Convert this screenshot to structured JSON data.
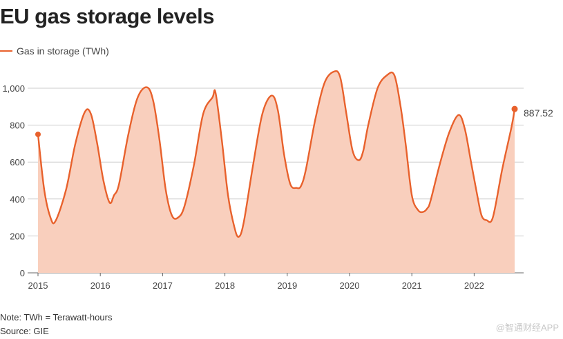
{
  "title": "EU gas storage levels",
  "chart_data": {
    "type": "area",
    "title": "EU gas storage levels",
    "xlabel": "",
    "ylabel": "",
    "ylim": [
      0,
      1100
    ],
    "y_ticks": [
      0,
      200,
      400,
      600,
      800,
      1000
    ],
    "y_tick_labels": [
      "0",
      "200",
      "400",
      "600",
      "800",
      "1,000"
    ],
    "x_ticks": [
      2015,
      2016,
      2017,
      2018,
      2019,
      2020,
      2021,
      2022
    ],
    "x_tick_labels": [
      "2015",
      "2016",
      "2017",
      "2018",
      "2019",
      "2020",
      "2021",
      "2022"
    ],
    "grid": "horizontal",
    "legend": "top-left",
    "series": [
      {
        "name": "Gas in storage (TWh)",
        "color": "#e8612c",
        "fill_color": "#f9cfbd",
        "x": [
          2015.0,
          2015.1,
          2015.2,
          2015.28,
          2015.45,
          2015.6,
          2015.75,
          2015.85,
          2015.95,
          2016.05,
          2016.15,
          2016.22,
          2016.3,
          2016.45,
          2016.6,
          2016.75,
          2016.85,
          2016.95,
          2017.05,
          2017.15,
          2017.25,
          2017.35,
          2017.5,
          2017.65,
          2017.8,
          2017.85,
          2017.95,
          2018.05,
          2018.15,
          2018.22,
          2018.3,
          2018.45,
          2018.6,
          2018.75,
          2018.85,
          2018.95,
          2019.05,
          2019.15,
          2019.22,
          2019.3,
          2019.45,
          2019.6,
          2019.75,
          2019.85,
          2019.95,
          2020.05,
          2020.15,
          2020.22,
          2020.3,
          2020.45,
          2020.6,
          2020.72,
          2020.82,
          2020.9,
          2021.0,
          2021.1,
          2021.18,
          2021.25,
          2021.3,
          2021.45,
          2021.6,
          2021.75,
          2021.85,
          2021.95,
          2022.05,
          2022.12,
          2022.2,
          2022.3,
          2022.45,
          2022.6,
          2022.65
        ],
        "values": [
          750,
          450,
          300,
          280,
          450,
          700,
          870,
          860,
          700,
          500,
          380,
          420,
          480,
          750,
          950,
          1005,
          930,
          720,
          450,
          310,
          300,
          360,
          580,
          860,
          950,
          975,
          720,
          420,
          250,
          195,
          270,
          580,
          860,
          960,
          880,
          640,
          480,
          460,
          470,
          560,
          830,
          1030,
          1090,
          1060,
          860,
          660,
          610,
          660,
          800,
          1000,
          1070,
          1070,
          900,
          700,
          420,
          340,
          330,
          350,
          390,
          590,
          760,
          855,
          780,
          600,
          420,
          310,
          285,
          300,
          560,
          790,
          887.52
        ]
      }
    ],
    "annotations": [
      {
        "label": "887.52",
        "x": 2022.65,
        "y": 887.52
      }
    ]
  },
  "notes": {
    "note": "Note: TWh = Terawatt-hours",
    "source": "Source: GIE"
  },
  "watermark": "@智通财经APP"
}
